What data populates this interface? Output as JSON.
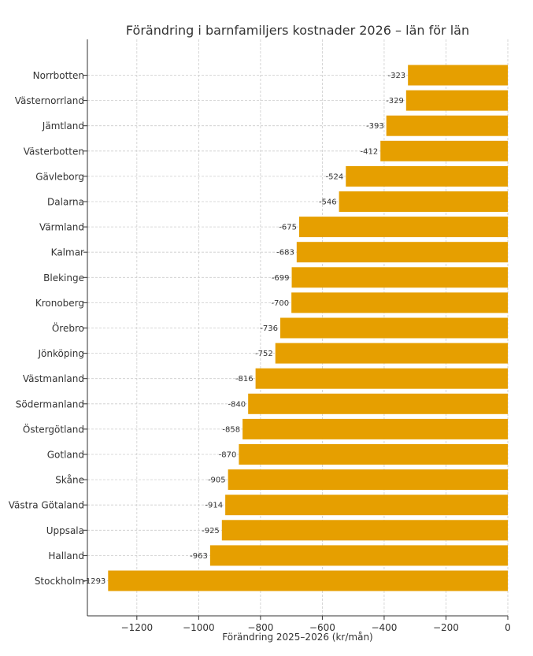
{
  "chart_data": {
    "type": "bar",
    "orientation": "horizontal",
    "title": "Förändring i barnfamiljers kostnader 2026 – län för län",
    "xlabel": "Förändring 2025–2026 (kr/mån)",
    "ylabel": "",
    "xlim": [
      -1360,
      0
    ],
    "xticks": [
      -1200,
      -1000,
      -800,
      -600,
      -400,
      -200,
      0
    ],
    "xtick_labels": [
      "−1200",
      "−1000",
      "−800",
      "−600",
      "−400",
      "−200",
      "0"
    ],
    "grid": true,
    "bar_color": "#e69f00",
    "categories": [
      "Norrbotten",
      "Västernorrland",
      "Jämtland",
      "Västerbotten",
      "Gävleborg",
      "Dalarna",
      "Värmland",
      "Kalmar",
      "Blekinge",
      "Kronoberg",
      "Örebro",
      "Jönköping",
      "Västmanland",
      "Södermanland",
      "Östergötland",
      "Gotland",
      "Skåne",
      "Västra Götaland",
      "Uppsala",
      "Halland",
      "Stockholm"
    ],
    "values": [
      -323,
      -329,
      -393,
      -412,
      -524,
      -546,
      -675,
      -683,
      -699,
      -700,
      -736,
      -752,
      -816,
      -840,
      -858,
      -870,
      -905,
      -914,
      -925,
      -963,
      -1293
    ],
    "value_labels": [
      "-323",
      "-329",
      "-393",
      "-412",
      "-524",
      "-546",
      "-675",
      "-683",
      "-699",
      "-700",
      "-736",
      "-752",
      "-816",
      "-840",
      "-858",
      "-870",
      "-905",
      "-914",
      "-925",
      "-963",
      "-1293"
    ]
  }
}
